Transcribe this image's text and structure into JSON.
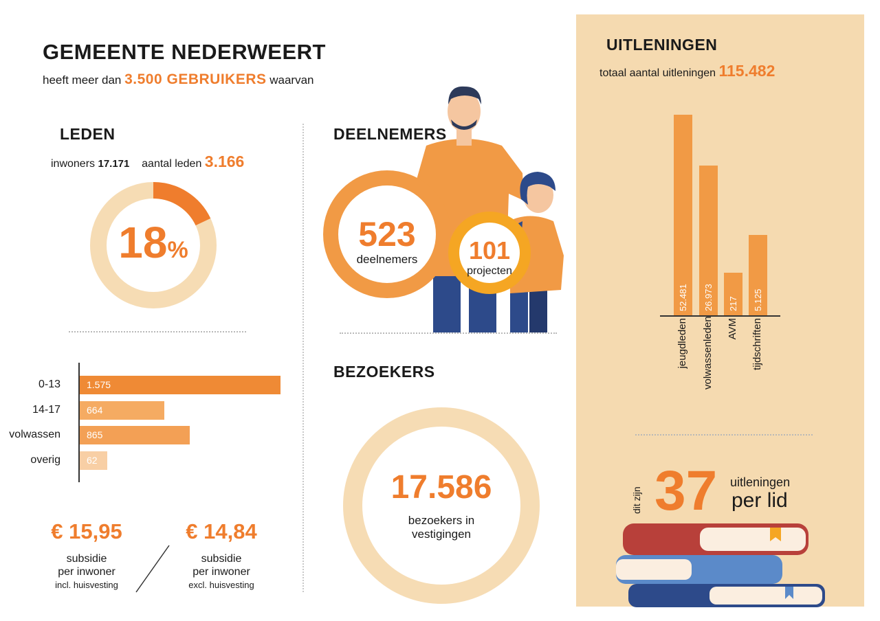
{
  "header": {
    "title": "GEMEENTE NEDERWEERT",
    "subtitle_pre": "heeft meer dan",
    "subtitle_big": "3.500 GEBRUIKERS",
    "subtitle_post": "waarvan"
  },
  "leden": {
    "heading": "LEDEN",
    "inwoners_label": "inwoners",
    "inwoners_value": "17.171",
    "aantal_label": "aantal leden",
    "aantal_value": "3.166",
    "percentage": "18",
    "percent_sign": "%"
  },
  "deelnemers": {
    "heading": "DEELNEMERS",
    "deelnemers_value": "523",
    "deelnemers_label": "deelnemers",
    "projecten_value": "101",
    "projecten_label": "projecten"
  },
  "bezoekers": {
    "heading": "BEZOEKERS",
    "value": "17.586",
    "label_line1": "bezoekers in",
    "label_line2": "vestigingen"
  },
  "subsidie": {
    "incl_value": "€ 15,95",
    "incl_line1": "subsidie",
    "incl_line2": "per inwoner",
    "incl_line3": "incl. huisvesting",
    "excl_value": "€ 14,84",
    "excl_line1": "subsidie",
    "excl_line2": "per inwoner",
    "excl_line3": "excl. huisvesting"
  },
  "uitleningen": {
    "heading": "UITLENINGEN",
    "total_label": "totaal aantal uitleningen",
    "total_value": "115.482",
    "per_lid_prefix": "dit zijn",
    "per_lid_value": "37",
    "per_lid_line1": "uitleningen",
    "per_lid_line2": "per lid"
  },
  "colors": {
    "orange": "#ef7d2d",
    "light_orange": "#f19a45",
    "beige": "#f5dab0",
    "pale_beige": "#f6dcb4",
    "yellow": "#f5a623",
    "navy": "#2d4a8a"
  },
  "chart_data": [
    {
      "type": "pie",
      "title": "LEDEN",
      "values": [
        18,
        82
      ],
      "unit": "%"
    },
    {
      "type": "bar",
      "orientation": "horizontal",
      "categories": [
        "0-13",
        "14-17",
        "volwassen",
        "overig"
      ],
      "values": [
        1575,
        664,
        865,
        62
      ],
      "value_labels": [
        "1.575",
        "664",
        "865",
        "62"
      ],
      "colors": [
        "#ef8a35",
        "#f5ab62",
        "#f3a055",
        "#f8cfa5"
      ]
    },
    {
      "type": "bar",
      "orientation": "vertical",
      "title": "UITLENINGEN",
      "categories": [
        "jeugdleden",
        "volwassenleden",
        "AVM",
        "tijdschriften"
      ],
      "values": [
        52481,
        26973,
        217,
        5125
      ],
      "value_labels": [
        "52.481",
        "26.973",
        "217",
        "5.125"
      ]
    }
  ]
}
